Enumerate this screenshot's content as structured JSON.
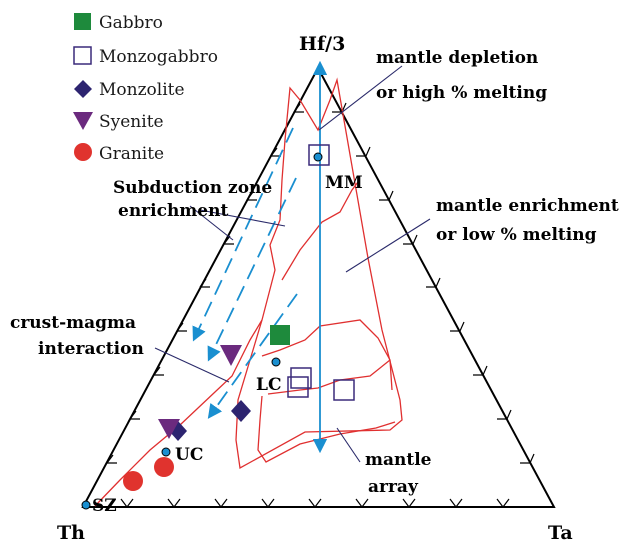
{
  "apex_labels": {
    "top": "Hf/3",
    "left": "Th",
    "right": "Ta"
  },
  "legend": [
    {
      "label": "Gabbro",
      "symbol": "square-filled",
      "color": "#1e8a3c"
    },
    {
      "label": "Monzogabbro",
      "symbol": "square-open",
      "color": "#3a2a7a"
    },
    {
      "label": "Monzolite",
      "symbol": "diamond",
      "color": "#2d2470"
    },
    {
      "label": "Syenite",
      "symbol": "triangle-down",
      "color": "#6b2a7e"
    },
    {
      "label": "Granite",
      "symbol": "circle",
      "color": "#e0332e"
    }
  ],
  "reference_points": [
    {
      "label": "MM"
    },
    {
      "label": "LC"
    },
    {
      "label": "UC"
    },
    {
      "label": "SZ"
    }
  ],
  "annotations": {
    "mantle_depletion": [
      "mantle depletion",
      "or high % melting"
    ],
    "subduction": [
      "Subduction zone",
      "enrichment"
    ],
    "mantle_enrichment": [
      "mantle enrichment",
      "or low % melting"
    ],
    "crust_magma": [
      "crust-magma",
      "interaction"
    ],
    "mantle_array": [
      "mantle",
      "array"
    ]
  },
  "colors": {
    "outline": "#000000",
    "field_lines": "#e03030",
    "arrows": "#1a8fd0",
    "leader": "#2a2a6a",
    "reference_dot": "#1a8fd0"
  }
}
